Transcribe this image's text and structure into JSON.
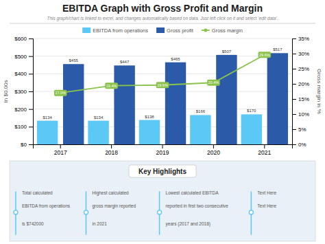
{
  "chart_data": {
    "type": "bar",
    "title": "EBITDA Graph with Gross Profit and Margin",
    "subtitle": "This graph/chart is linked to excel, and changes automatically based on data. Just left click on it and select 'edit data'.",
    "categories": [
      "2017",
      "2018",
      "2019",
      "2020",
      "2021"
    ],
    "series": [
      {
        "name": "EBITDA from operations",
        "color": "#5BC8F5",
        "values": [
          134,
          134,
          138,
          166,
          170
        ],
        "value_labels": [
          "$134",
          "$134",
          "$138",
          "$166",
          "$170"
        ]
      },
      {
        "name": "Gross profit",
        "color": "#2B5BA8",
        "values": [
          455,
          447,
          465,
          507,
          517
        ],
        "value_labels": [
          "$455",
          "$447",
          "$465",
          "$507",
          "$517"
        ]
      },
      {
        "name": "Gross margin",
        "type": "line",
        "axis": "y2",
        "color": "#8BC34A",
        "marker": "circle",
        "values": [
          17.0,
          19.4,
          19.6,
          20.4,
          29.6
        ],
        "value_labels": [
          "17.0%",
          "19.4%",
          "19.6%",
          "20.4%",
          "29.6%"
        ]
      }
    ],
    "ylabel": "In $0.00s",
    "y2label": "Gross margin in %",
    "ylim": [
      0,
      600
    ],
    "yticks": [
      {
        "value": 0,
        "label": "$0"
      },
      {
        "value": 100,
        "label": "$100"
      },
      {
        "value": 200,
        "label": "$200"
      },
      {
        "value": 300,
        "label": "$300"
      },
      {
        "value": 400,
        "label": "$400"
      },
      {
        "value": 500,
        "label": "$500"
      },
      {
        "value": 600,
        "label": "$600"
      }
    ],
    "y2lim": [
      0,
      35
    ],
    "y2ticks": [
      {
        "value": 0,
        "label": "0%"
      },
      {
        "value": 5,
        "label": "5%"
      },
      {
        "value": 10,
        "label": "10%"
      },
      {
        "value": 15,
        "label": "15%"
      },
      {
        "value": 20,
        "label": "20%"
      },
      {
        "value": 25,
        "label": "25%"
      },
      {
        "value": 30,
        "label": "30%"
      },
      {
        "value": 35,
        "label": "35%"
      }
    ],
    "grid": true,
    "legend": "top",
    "data_labels": true,
    "annotations": {
      "title": "Key Highlights",
      "columns": [
        [
          "Total calculated",
          "EBITDA from operations",
          "is $742000"
        ],
        [
          "Highest calculated",
          "gross margin reported",
          "in 2021"
        ],
        [
          "Lowest calculated EBITDA",
          "reported in first two consecutive",
          "years (2017 and 2018)"
        ],
        [
          "Text Here",
          "Text Here"
        ]
      ]
    }
  }
}
